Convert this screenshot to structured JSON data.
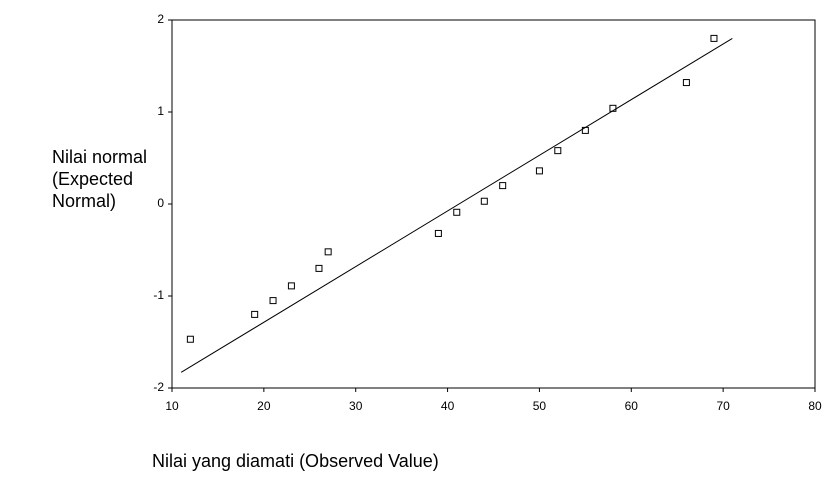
{
  "chart_data": {
    "type": "scatter",
    "ylabel": [
      "Nilai normal",
      "(Expected",
      "Normal)"
    ],
    "xlabel": "Nilai yang diamati (Observed Value)",
    "x": [
      12,
      19,
      21,
      23,
      26,
      27,
      39,
      41,
      44,
      46,
      50,
      52,
      55,
      58,
      66,
      69
    ],
    "values": [
      -1.47,
      -1.2,
      -1.05,
      -0.89,
      -0.7,
      -0.52,
      -0.32,
      -0.09,
      0.03,
      0.2,
      0.36,
      0.58,
      0.8,
      1.04,
      1.32,
      1.8
    ],
    "reference_line": {
      "x": [
        11,
        71
      ],
      "y": [
        -1.83,
        1.8
      ]
    },
    "color": "#000000",
    "xlim": [
      10,
      80
    ],
    "xticks": [
      10,
      20,
      30,
      40,
      50,
      60,
      70,
      80
    ],
    "ylim": [
      -2,
      2
    ],
    "yticks": [
      -2,
      -1,
      0,
      1,
      2
    ]
  }
}
